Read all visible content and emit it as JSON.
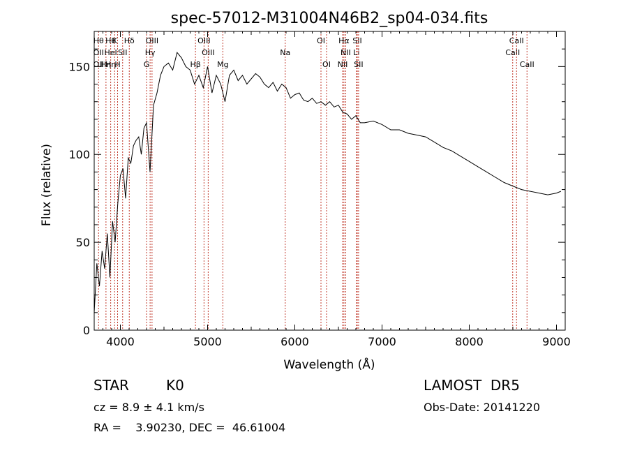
{
  "title": "spec-57012-M31004N46B2_sp04-034.fits",
  "footer": {
    "class_label": "STAR",
    "subclass": "K0",
    "survey": "LAMOST  DR5",
    "cz": "cz = 8.9 ± 4.1 km/s",
    "obs_date": "Obs-Date: 20141220",
    "coords": "RA =    3.90230, DEC =  46.61004"
  },
  "chart_data": {
    "type": "line",
    "xlabel": "Wavelength (Å)",
    "ylabel": "Flux (relative)",
    "xlim": [
      3700,
      9100
    ],
    "ylim": [
      0,
      170
    ],
    "xticks": [
      4000,
      5000,
      6000,
      7000,
      8000,
      9000
    ],
    "yticks": [
      0,
      50,
      100,
      150
    ],
    "grid": false,
    "series": [
      {
        "color": "#000000",
        "x": [
          3700,
          3730,
          3760,
          3790,
          3820,
          3850,
          3880,
          3910,
          3940,
          3970,
          4000,
          4030,
          4060,
          4090,
          4120,
          4150,
          4180,
          4210,
          4240,
          4270,
          4300,
          4340,
          4380,
          4420,
          4460,
          4500,
          4550,
          4600,
          4650,
          4700,
          4750,
          4800,
          4850,
          4900,
          4950,
          5000,
          5050,
          5100,
          5150,
          5200,
          5250,
          5300,
          5350,
          5400,
          5450,
          5500,
          5550,
          5600,
          5650,
          5700,
          5750,
          5800,
          5850,
          5900,
          5950,
          6000,
          6050,
          6100,
          6150,
          6200,
          6250,
          6300,
          6350,
          6400,
          6450,
          6500,
          6550,
          6600,
          6650,
          6700,
          6750,
          6800,
          6900,
          7000,
          7100,
          7200,
          7300,
          7400,
          7500,
          7600,
          7700,
          7800,
          7900,
          8000,
          8100,
          8200,
          8300,
          8400,
          8500,
          8600,
          8700,
          8800,
          8900,
          9000,
          9050
        ],
        "y": [
          10,
          38,
          25,
          45,
          35,
          55,
          30,
          62,
          50,
          72,
          88,
          92,
          75,
          98,
          95,
          105,
          108,
          110,
          100,
          115,
          118,
          90,
          128,
          135,
          145,
          150,
          152,
          148,
          158,
          155,
          150,
          148,
          140,
          145,
          138,
          150,
          135,
          145,
          140,
          130,
          145,
          148,
          142,
          145,
          140,
          143,
          146,
          144,
          140,
          138,
          141,
          136,
          140,
          138,
          132,
          134,
          135,
          131,
          130,
          132,
          129,
          130,
          128,
          130,
          127,
          128,
          124,
          123,
          120,
          122,
          118,
          118,
          119,
          117,
          114,
          114,
          112,
          111,
          110,
          107,
          104,
          102,
          99,
          96,
          93,
          90,
          87,
          84,
          82,
          80,
          79,
          78,
          77,
          78,
          79
        ]
      }
    ],
    "lines": [
      {
        "x": 3750,
        "labels": [
          "Hθ",
          "OII",
          "OII"
        ]
      },
      {
        "x": 3835,
        "labels": [
          "",
          "",
          "Hη"
        ]
      },
      {
        "x": 3889,
        "labels": [
          "Hθ",
          "HeI",
          "Hη"
        ]
      },
      {
        "x": 3934,
        "labels": [
          "K",
          "",
          ""
        ]
      },
      {
        "x": 3968,
        "labels": [
          "",
          "",
          "H"
        ]
      },
      {
        "x": 4026,
        "labels": [
          "",
          "SII",
          ""
        ]
      },
      {
        "x": 4102,
        "labels": [
          "Hδ",
          "",
          ""
        ]
      },
      {
        "x": 4300,
        "labels": [
          "",
          "",
          "G"
        ]
      },
      {
        "x": 4341,
        "labels": [
          "",
          "Hγ",
          ""
        ]
      },
      {
        "x": 4363,
        "labels": [
          "OIII",
          "",
          ""
        ]
      },
      {
        "x": 4861,
        "labels": [
          "",
          "",
          "Hβ"
        ]
      },
      {
        "x": 4959,
        "labels": [
          "OIII",
          "",
          ""
        ]
      },
      {
        "x": 5007,
        "labels": [
          "",
          "OIII",
          ""
        ]
      },
      {
        "x": 5175,
        "labels": [
          "",
          "",
          "Mg"
        ]
      },
      {
        "x": 5890,
        "labels": [
          "",
          "Na",
          ""
        ]
      },
      {
        "x": 6300,
        "labels": [
          "OI",
          "",
          ""
        ]
      },
      {
        "x": 6364,
        "labels": [
          "",
          "",
          "OI"
        ]
      },
      {
        "x": 6548,
        "labels": [
          "",
          "",
          "NII"
        ]
      },
      {
        "x": 6563,
        "labels": [
          "Hα",
          "",
          ""
        ]
      },
      {
        "x": 6583,
        "labels": [
          "",
          "NII",
          ""
        ]
      },
      {
        "x": 6707,
        "labels": [
          "",
          "Li",
          ""
        ]
      },
      {
        "x": 6716,
        "labels": [
          "SII",
          "",
          ""
        ]
      },
      {
        "x": 6731,
        "labels": [
          "",
          "",
          "SII"
        ]
      },
      {
        "x": 8498,
        "labels": [
          "",
          "CaII",
          ""
        ]
      },
      {
        "x": 8542,
        "labels": [
          "CaII",
          "",
          ""
        ]
      },
      {
        "x": 8662,
        "labels": [
          "",
          "",
          "CaII"
        ]
      }
    ]
  }
}
